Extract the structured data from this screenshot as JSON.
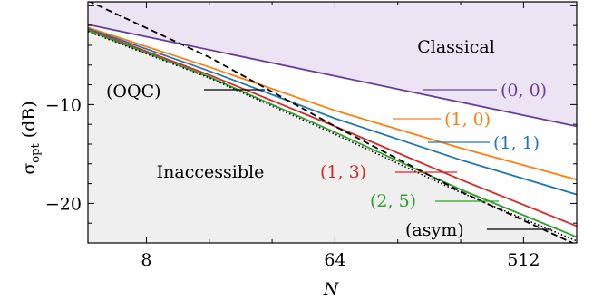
{
  "chart_data": {
    "type": "line",
    "xlabel": "N",
    "ylabel": "σ_opt (dB)",
    "ylabel_main": "σ",
    "ylabel_sub": "opt",
    "ylabel_unit": " (dB)",
    "xscale": "log2",
    "xlim": [
      4.2,
      920
    ],
    "ylim": [
      -24.0,
      0.4
    ],
    "xticks": [
      8,
      64,
      512
    ],
    "xtick_labels": [
      "8",
      "64",
      "512"
    ],
    "yticks": [
      -10,
      -20
    ],
    "ytick_labels": [
      "−10",
      "−20"
    ],
    "regions": [
      {
        "name": "Classical",
        "color": "#ece4f3"
      },
      {
        "name": "Inaccessible",
        "color": "#efefef"
      }
    ],
    "series": [
      {
        "name": "(0, 0)",
        "color": "#6a3d9a",
        "style": "solid",
        "x": [
          4.2,
          920
        ],
        "y": [
          -1.9,
          -12.2
        ]
      },
      {
        "name": "(1, 0)",
        "color": "#ff7f0e",
        "style": "solid",
        "x": [
          4.2,
          16,
          64,
          256,
          920
        ],
        "y": [
          -2.2,
          -6.2,
          -10.6,
          -14.4,
          -17.6
        ]
      },
      {
        "name": "(1, 1)",
        "color": "#1f77b4",
        "style": "solid",
        "x": [
          4.2,
          16,
          64,
          256,
          920
        ],
        "y": [
          -2.3,
          -6.6,
          -11.4,
          -15.6,
          -19.1
        ]
      },
      {
        "name": "(1, 3)",
        "color": "#d62728",
        "style": "solid",
        "x": [
          4.2,
          16,
          64,
          256,
          920
        ],
        "y": [
          -2.4,
          -7.0,
          -12.2,
          -17.6,
          -22.3
        ]
      },
      {
        "name": "(2, 5)",
        "color": "#2ca02c",
        "style": "solid",
        "x": [
          4.2,
          16,
          64,
          256,
          920
        ],
        "y": [
          -2.5,
          -7.2,
          -12.8,
          -18.6,
          -23.4
        ]
      },
      {
        "name": "(asym)",
        "color": "#000000",
        "style": "dotted",
        "x": [
          4.2,
          16,
          64,
          256,
          920
        ],
        "y": [
          -2.6,
          -7.3,
          -13.0,
          -18.9,
          -23.8
        ]
      },
      {
        "name": "(OQC)",
        "color": "#000000",
        "style": "dashed",
        "x": [
          4.2,
          16,
          64,
          256,
          920
        ],
        "y": [
          0.5,
          -5.2,
          -12.2,
          -18.8,
          -24.2
        ]
      }
    ],
    "annotations": [
      {
        "text": "Classical",
        "series_color": "#000000",
        "kind": "region"
      },
      {
        "text": "Inaccessible",
        "series_color": "#000000",
        "kind": "region"
      },
      {
        "text": "(0, 0)",
        "x": 300,
        "y": -9.0
      },
      {
        "text": "(1, 0)",
        "x": 130,
        "y": -11.9
      },
      {
        "text": "(1, 1)",
        "x": 190,
        "y": -14.2
      },
      {
        "text": "(1, 3)",
        "x": 160,
        "y": -17.0
      },
      {
        "text": "(2, 5)",
        "x": 215,
        "y": -20.0
      },
      {
        "text": "(OQC)",
        "x": 36,
        "y": -8.7
      },
      {
        "text": "(asym)",
        "x": 760,
        "y": -23.2
      }
    ],
    "grid": false
  }
}
